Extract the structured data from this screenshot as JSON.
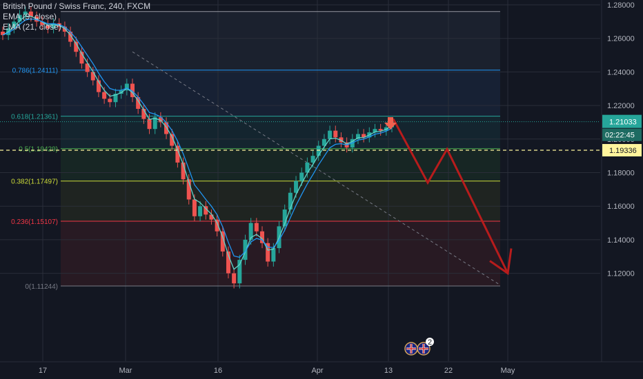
{
  "legend": {
    "symbol": "British Pound / Swiss Franc, 240, FXCM",
    "ema1": "EMA (9, close)",
    "ema2": "EMA (21, close)"
  },
  "colors": {
    "background": "#131722",
    "grid": "#2a2e39",
    "candle_up": "#26a69a",
    "candle_down": "#ef5350",
    "ema_fast": "#5fd3c9",
    "ema_slow": "#2196f3",
    "projection": "#b71c1c",
    "current_price_tag": "#26a69a",
    "dashed_level_tag": "#fff59d"
  },
  "chart_data": {
    "type": "line",
    "title": "British Pound / Swiss Franc, 240, FXCM",
    "symbol": "GBPCHF",
    "timeframe": "240",
    "ylim": [
      1.1125,
      1.28
    ],
    "y_ticks": [
      "1.28000",
      "1.26000",
      "1.24000",
      "1.22000",
      "1.20000",
      "1.18000",
      "1.16000",
      "1.14000",
      "1.12000"
    ],
    "x_ticks": [
      "17",
      "Mar",
      "16",
      "Apr",
      "13",
      "22",
      "May"
    ],
    "grid": true,
    "current_price": {
      "label": "1.21033",
      "value": 1.21033,
      "timer": "02:22:45"
    },
    "dashed_level": {
      "label": "1.19336",
      "value": 1.19336
    },
    "fib_levels": [
      {
        "label": "0.786(1.24111)",
        "ratio": 0.786,
        "value": 1.24111,
        "color": "#2196f3"
      },
      {
        "label": "0.618(1.21361)",
        "ratio": 0.618,
        "value": 1.21361,
        "color": "#26a69a"
      },
      {
        "label": "0.5(1.19429)",
        "ratio": 0.5,
        "value": 1.19429,
        "color": "#4caf50"
      },
      {
        "label": "0.382(1.17497)",
        "ratio": 0.382,
        "value": 1.17497,
        "color": "#cddc39"
      },
      {
        "label": "0.236(1.15107)",
        "ratio": 0.236,
        "value": 1.15107,
        "color": "#f23645"
      },
      {
        "label": "0(1.11244)",
        "ratio": 0,
        "value": 1.11244,
        "color": "#787b86"
      }
    ],
    "series": [
      {
        "name": "British Pound / Swiss Franc",
        "kind": "close",
        "values": [
          1.262,
          1.266,
          1.27,
          1.274,
          1.276,
          1.273,
          1.27,
          1.268,
          1.266,
          1.269,
          1.267,
          1.264,
          1.258,
          1.252,
          1.245,
          1.24,
          1.235,
          1.228,
          1.224,
          1.222,
          1.227,
          1.229,
          1.233,
          1.225,
          1.218,
          1.212,
          1.206,
          1.213,
          1.21,
          1.203,
          1.196,
          1.186,
          1.176,
          1.164,
          1.154,
          1.16,
          1.155,
          1.152,
          1.145,
          1.133,
          1.12,
          1.114,
          1.128,
          1.14,
          1.15,
          1.145,
          1.138,
          1.127,
          1.135,
          1.148,
          1.158,
          1.168,
          1.175,
          1.18,
          1.186,
          1.19,
          1.196,
          1.2,
          1.205,
          1.201,
          1.198,
          1.195,
          1.2,
          1.203,
          1.201,
          1.204,
          1.206,
          1.205,
          1.207,
          1.21
        ]
      },
      {
        "name": "EMA (9, close)",
        "kind": "ema9"
      },
      {
        "name": "EMA (21, close)",
        "kind": "ema21"
      }
    ],
    "projection_path": [
      1.212,
      1.195,
      1.174,
      1.194,
      1.12
    ],
    "projection_arrow_end": 1.12,
    "markers": {
      "down_arrow": "red-down-arrow",
      "events": [
        "uk-flag-icon",
        "uk-flag-icon"
      ],
      "event_count": "2"
    }
  }
}
